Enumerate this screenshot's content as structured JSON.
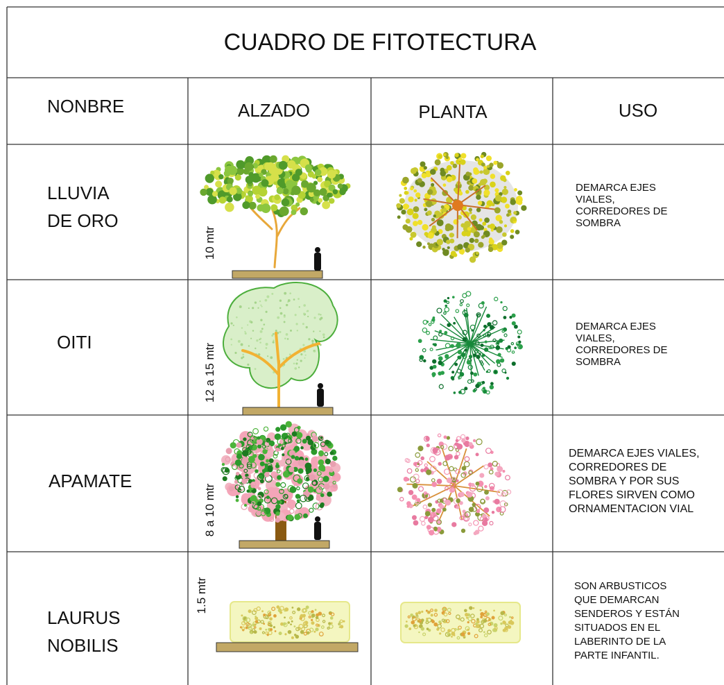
{
  "title": "CUADRO DE FITOTECTURA",
  "headers": [
    "NONBRE",
    "ALZADO",
    "PLANTA",
    "USO"
  ],
  "rows": [
    {
      "name": [
        "LLUVIA",
        "DE ORO"
      ],
      "height": "10 mtr",
      "uso": [
        "DEMARCA EJES",
        "VIALES,",
        "CORREDORES DE",
        "SOMBRA"
      ]
    },
    {
      "name": [
        "OITI"
      ],
      "height": "12 a 15 mtr",
      "uso": [
        "DEMARCA EJES",
        "VIALES,",
        "CORREDORES DE",
        "SOMBRA"
      ]
    },
    {
      "name": [
        "APAMATE"
      ],
      "height": "8 a 10 mtr",
      "uso": [
        "DEMARCA EJES VIALES,",
        "CORREDORES DE",
        "SOMBRA Y POR SUS",
        "FLORES SIRVEN COMO",
        "ORNAMENTACION VIAL"
      ]
    },
    {
      "name": [
        "LAURUS",
        "NOBILIS"
      ],
      "height": "1.5 mtr",
      "uso": [
        "SON ARBUSTICOS",
        "QUE DEMARCAN",
        "SENDEROS Y ESTÁN",
        "SITUADOS EN EL",
        "LABERINTO DE LA",
        "PARTE INFANTIL."
      ]
    }
  ]
}
